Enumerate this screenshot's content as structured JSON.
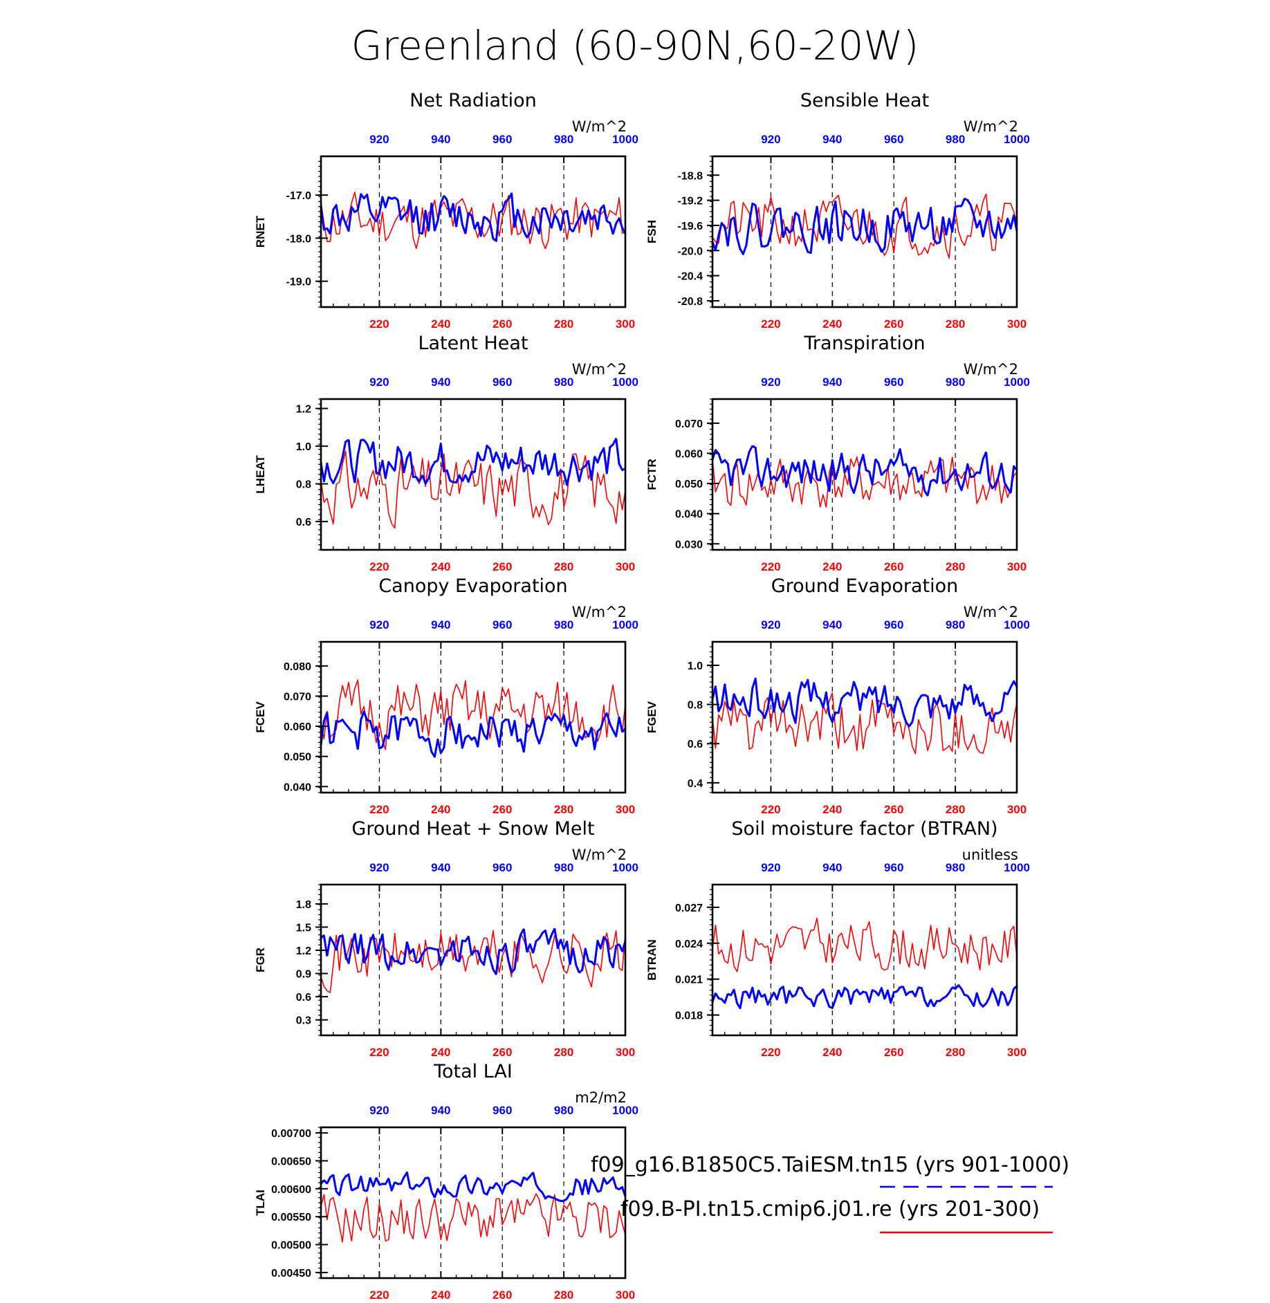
{
  "title": "Greenland (60-90N,60-20W)",
  "colors": {
    "red_series": "#ff0000",
    "blue_series": "#0000ff",
    "frame": "#000000"
  },
  "legend": {
    "entries": [
      {
        "label": "f09_g16.B1850C5.TaiESM.tn15 (yrs 901-1000)",
        "color": "#0000ff",
        "style": "dashed"
      },
      {
        "label": "f09.B-PI.tn15.cmip6.j01.re (yrs 201-300)",
        "color": "#ff0000",
        "style": "solid"
      }
    ]
  },
  "chart_data": [
    {
      "type": "line",
      "title": "Net Radiation",
      "ylabel": "RNET",
      "units": "W/m^2",
      "x_bottom": {
        "range": [
          201,
          300
        ],
        "ticks": [
          220,
          240,
          260,
          280,
          300
        ],
        "color": "#ff0000"
      },
      "x_top": {
        "range": [
          901,
          1000
        ],
        "ticks": [
          920,
          940,
          960,
          980,
          1000
        ],
        "color": "#0000ff"
      },
      "ylim": [
        -19.6,
        -16.1
      ],
      "yticks": [
        -17.0,
        -18.0,
        -19.0
      ],
      "ytick_labels": [
        "-17.0",
        "-18.0",
        "-19.0"
      ],
      "series": [
        {
          "color": "#ff0000",
          "style": "solid",
          "mean": -17.6,
          "amp": 0.55,
          "seed": 11
        },
        {
          "color": "#0000ff",
          "style": "dotted",
          "mean": -17.5,
          "amp": 0.45,
          "seed": 12
        }
      ]
    },
    {
      "type": "line",
      "title": "Sensible Heat",
      "ylabel": "FSH",
      "units": "W/m^2",
      "x_bottom": {
        "range": [
          201,
          300
        ],
        "ticks": [
          220,
          240,
          260,
          280,
          300
        ],
        "color": "#ff0000"
      },
      "x_top": {
        "range": [
          901,
          1000
        ],
        "ticks": [
          920,
          940,
          960,
          980,
          1000
        ],
        "color": "#0000ff"
      },
      "ylim": [
        -20.9,
        -18.5
      ],
      "yticks": [
        -18.8,
        -19.2,
        -19.6,
        -20.0,
        -20.4,
        -20.8
      ],
      "ytick_labels": [
        "-18.8",
        "-19.2",
        "-19.6",
        "-20.0",
        "-20.4",
        "-20.8"
      ],
      "series": [
        {
          "color": "#ff0000",
          "style": "solid",
          "mean": -19.6,
          "amp": 0.38,
          "seed": 21
        },
        {
          "color": "#0000ff",
          "style": "dotted",
          "mean": -19.6,
          "amp": 0.32,
          "seed": 22
        }
      ]
    },
    {
      "type": "line",
      "title": "Latent Heat",
      "ylabel": "LHEAT",
      "units": "W/m^2",
      "x_bottom": {
        "range": [
          201,
          300
        ],
        "ticks": [
          220,
          240,
          260,
          280,
          300
        ],
        "color": "#ff0000"
      },
      "x_top": {
        "range": [
          901,
          1000
        ],
        "ticks": [
          920,
          940,
          960,
          980,
          1000
        ],
        "color": "#0000ff"
      },
      "ylim": [
        0.45,
        1.25
      ],
      "yticks": [
        1.2,
        1.0,
        0.8,
        0.6
      ],
      "ytick_labels": [
        "1.2",
        "1.0",
        "0.8",
        "0.6"
      ],
      "series": [
        {
          "color": "#ff0000",
          "style": "solid",
          "mean": 0.78,
          "amp": 0.15,
          "seed": 31
        },
        {
          "color": "#0000ff",
          "style": "dotted",
          "mean": 0.92,
          "amp": 0.1,
          "seed": 32
        }
      ]
    },
    {
      "type": "line",
      "title": "Transpiration",
      "ylabel": "FCTR",
      "units": "W/m^2",
      "x_bottom": {
        "range": [
          201,
          300
        ],
        "ticks": [
          220,
          240,
          260,
          280,
          300
        ],
        "color": "#ff0000"
      },
      "x_top": {
        "range": [
          901,
          1000
        ],
        "ticks": [
          920,
          940,
          960,
          980,
          1000
        ],
        "color": "#0000ff"
      },
      "ylim": [
        0.028,
        0.078
      ],
      "yticks": [
        0.07,
        0.06,
        0.05,
        0.04,
        0.03
      ],
      "ytick_labels": [
        "0.070",
        "0.060",
        "0.050",
        "0.040",
        "0.030"
      ],
      "series": [
        {
          "color": "#ff0000",
          "style": "solid",
          "mean": 0.05,
          "amp": 0.008,
          "seed": 41
        },
        {
          "color": "#0000ff",
          "style": "dotted",
          "mean": 0.054,
          "amp": 0.006,
          "seed": 42
        }
      ]
    },
    {
      "type": "line",
      "title": "Canopy Evaporation",
      "ylabel": "FCEV",
      "units": "W/m^2",
      "x_bottom": {
        "range": [
          201,
          300
        ],
        "ticks": [
          220,
          240,
          260,
          280,
          300
        ],
        "color": "#ff0000"
      },
      "x_top": {
        "range": [
          901,
          1000
        ],
        "ticks": [
          920,
          940,
          960,
          980,
          1000
        ],
        "color": "#0000ff"
      },
      "ylim": [
        0.038,
        0.088
      ],
      "yticks": [
        0.08,
        0.07,
        0.06,
        0.05,
        0.04
      ],
      "ytick_labels": [
        "0.080",
        "0.070",
        "0.060",
        "0.050",
        "0.040"
      ],
      "series": [
        {
          "color": "#ff0000",
          "style": "solid",
          "mean": 0.064,
          "amp": 0.009,
          "seed": 51
        },
        {
          "color": "#0000ff",
          "style": "dotted",
          "mean": 0.058,
          "amp": 0.006,
          "seed": 52
        }
      ]
    },
    {
      "type": "line",
      "title": "Ground Evaporation",
      "ylabel": "FGEV",
      "units": "W/m^2",
      "x_bottom": {
        "range": [
          201,
          300
        ],
        "ticks": [
          220,
          240,
          260,
          280,
          300
        ],
        "color": "#ff0000"
      },
      "x_top": {
        "range": [
          901,
          1000
        ],
        "ticks": [
          920,
          940,
          960,
          980,
          1000
        ],
        "color": "#0000ff"
      },
      "ylim": [
        0.35,
        1.12
      ],
      "yticks": [
        1.0,
        0.8,
        0.6,
        0.4
      ],
      "ytick_labels": [
        "1.0",
        "0.8",
        "0.6",
        "0.4"
      ],
      "series": [
        {
          "color": "#ff0000",
          "style": "solid",
          "mean": 0.68,
          "amp": 0.14,
          "seed": 61
        },
        {
          "color": "#0000ff",
          "style": "dotted",
          "mean": 0.82,
          "amp": 0.09,
          "seed": 62
        }
      ]
    },
    {
      "type": "line",
      "title": "Ground Heat + Snow Melt",
      "ylabel": "FGR",
      "units": "W/m^2",
      "x_bottom": {
        "range": [
          201,
          300
        ],
        "ticks": [
          220,
          240,
          260,
          280,
          300
        ],
        "color": "#ff0000"
      },
      "x_top": {
        "range": [
          901,
          1000
        ],
        "ticks": [
          920,
          940,
          960,
          980,
          1000
        ],
        "color": "#0000ff"
      },
      "ylim": [
        0.1,
        2.05
      ],
      "yticks": [
        1.8,
        1.5,
        1.2,
        0.9,
        0.6,
        0.3
      ],
      "ytick_labels": [
        "1.8",
        "1.5",
        "1.2",
        "0.9",
        "0.6",
        "0.3"
      ],
      "series": [
        {
          "color": "#ff0000",
          "style": "solid",
          "mean": 1.15,
          "amp": 0.32,
          "seed": 71
        },
        {
          "color": "#0000ff",
          "style": "dotted",
          "mean": 1.18,
          "amp": 0.22,
          "seed": 72
        }
      ]
    },
    {
      "type": "line",
      "title": "Soil moisture factor (BTRAN)",
      "ylabel": "BTRAN",
      "units": "unitless",
      "x_bottom": {
        "range": [
          201,
          300
        ],
        "ticks": [
          220,
          240,
          260,
          280,
          300
        ],
        "color": "#ff0000"
      },
      "x_top": {
        "range": [
          901,
          1000
        ],
        "ticks": [
          920,
          940,
          960,
          980,
          1000
        ],
        "color": "#0000ff"
      },
      "ylim": [
        0.0163,
        0.0289
      ],
      "yticks": [
        0.027,
        0.024,
        0.021,
        0.018
      ],
      "ytick_labels": [
        "0.027",
        "0.024",
        "0.021",
        "0.018"
      ],
      "series": [
        {
          "color": "#ff0000",
          "style": "solid",
          "mean": 0.0238,
          "amp": 0.0018,
          "seed": 81
        },
        {
          "color": "#0000ff",
          "style": "dotted",
          "mean": 0.0195,
          "amp": 0.0008,
          "seed": 82
        }
      ]
    },
    {
      "type": "line",
      "title": "Total LAI",
      "ylabel": "TLAI",
      "units": "m2/m2",
      "x_bottom": {
        "range": [
          201,
          300
        ],
        "ticks": [
          220,
          240,
          260,
          280,
          300
        ],
        "color": "#ff0000"
      },
      "x_top": {
        "range": [
          901,
          1000
        ],
        "ticks": [
          920,
          940,
          960,
          980,
          1000
        ],
        "color": "#0000ff"
      },
      "ylim": [
        0.0044,
        0.0071
      ],
      "yticks": [
        0.007,
        0.0065,
        0.006,
        0.0055,
        0.005,
        0.0045
      ],
      "ytick_labels": [
        "0.00700",
        "0.00650",
        "0.00600",
        "0.00550",
        "0.00500",
        "0.00450"
      ],
      "series": [
        {
          "color": "#ff0000",
          "style": "solid",
          "mean": 0.00545,
          "amp": 0.0004,
          "seed": 91
        },
        {
          "color": "#0000ff",
          "style": "dotted",
          "mean": 0.00605,
          "amp": 0.00018,
          "seed": 92
        }
      ]
    }
  ]
}
